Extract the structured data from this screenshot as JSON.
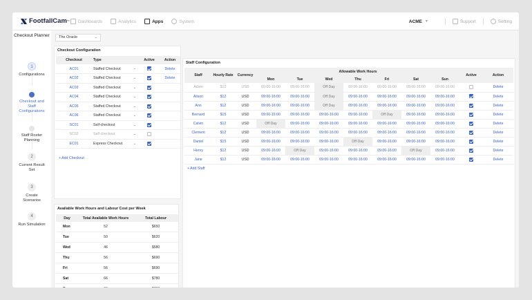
{
  "brand": {
    "name": "FootfallCam",
    "trademark": "™"
  },
  "nav": [
    {
      "label": "Dashboards",
      "icon": "dashboard-icon",
      "active": false
    },
    {
      "label": "Analytics",
      "icon": "analytics-icon",
      "active": false
    },
    {
      "label": "Apps",
      "icon": "apps-grid-icon",
      "active": true
    },
    {
      "label": "System",
      "icon": "system-icon",
      "active": false
    }
  ],
  "account": {
    "name": "ACME",
    "support_label": "Support",
    "setting_label": "Setting"
  },
  "sidebar": {
    "title": "Checkout Planner",
    "steps": [
      {
        "number": "1",
        "label": "Configurations",
        "state": "done"
      },
      {
        "number": "",
        "label": "Checkout and Staff Configurations",
        "state": "current"
      },
      {
        "number": "",
        "label": "Staff Roster Planning",
        "state": "pending"
      },
      {
        "number": "2",
        "label": "Current Result Set",
        "state": "pending"
      },
      {
        "number": "3",
        "label": "Create Scenarios",
        "state": "pending"
      },
      {
        "number": "4",
        "label": "Run Simulation",
        "state": "pending"
      }
    ]
  },
  "store_select": {
    "value": "The Oracle"
  },
  "checkout_config": {
    "title": "Checkout Configuration",
    "headers": [
      "Checkout",
      "Type",
      "Active",
      "Action"
    ],
    "rows": [
      {
        "checkout": "AC01",
        "type": "Staffed Checkout",
        "active": true,
        "action": "Delete",
        "muted": false
      },
      {
        "checkout": "AC02",
        "type": "Staffed Checkout",
        "active": true,
        "action": "Delete",
        "muted": false
      },
      {
        "checkout": "AC03",
        "type": "Staffed Checkout",
        "active": true,
        "action": "",
        "muted": false
      },
      {
        "checkout": "AC04",
        "type": "Staffed Checkout",
        "active": true,
        "action": "",
        "muted": false
      },
      {
        "checkout": "AC05",
        "type": "Staffed Checkout",
        "active": true,
        "action": "",
        "muted": false
      },
      {
        "checkout": "AC06",
        "type": "Staffed Checkout",
        "active": true,
        "action": "",
        "muted": false
      },
      {
        "checkout": "SC01",
        "type": "Self-checkout",
        "active": true,
        "action": "",
        "muted": false
      },
      {
        "checkout": "SC02",
        "type": "Self-checkout",
        "active": false,
        "action": "",
        "muted": true
      },
      {
        "checkout": "EC01",
        "type": "Express Checkout",
        "active": true,
        "action": "",
        "muted": false
      }
    ],
    "add_label": "+ Add Checkout"
  },
  "labour": {
    "title": "Available Work Hours and Labour Cost per Week",
    "headers": [
      "Day",
      "Total Available Work Hours",
      "Total Labour"
    ],
    "rows": [
      {
        "day": "Mon",
        "hours": "52",
        "labour": "$650"
      },
      {
        "day": "Tue",
        "hours": "50",
        "labour": "$620"
      },
      {
        "day": "Wed",
        "hours": "46",
        "labour": "$580"
      },
      {
        "day": "Thu",
        "hours": "56",
        "labour": "$690"
      },
      {
        "day": "Fri",
        "hours": "56",
        "labour": "$690"
      },
      {
        "day": "Sat",
        "hours": "66",
        "labour": "$780"
      },
      {
        "day": "Sun",
        "hours": "66",
        "labour": "$780"
      }
    ],
    "total": {
      "day": "Total",
      "hours": "392",
      "labour": "$4790"
    }
  },
  "staff_config": {
    "title": "Staff Configuration",
    "headers": {
      "staff": "Staff",
      "rate": "Hourly Rate",
      "currency": "Currency",
      "hours_group": "Allowable Work Hours",
      "active": "Active",
      "action": "Action"
    },
    "days": [
      "Mon",
      "Tue",
      "Wed",
      "Thu",
      "Fri",
      "Sat",
      "Sun"
    ],
    "rows": [
      {
        "name": "Adam",
        "rate": "$12",
        "currency": "USD",
        "hours": [
          "09:00-16:00",
          "09:00-16:00",
          "Off Day",
          "09:00-16:00",
          "09:00-16:00",
          "09:00-16:00",
          "09:00-16:00"
        ],
        "active": false,
        "action": "Delete",
        "muted": true
      },
      {
        "name": "Alison",
        "rate": "$12",
        "currency": "USD",
        "hours": [
          "09:00-16:00",
          "09:00-16:00",
          "Off Day",
          "09:00-16:00",
          "09:00-16:00",
          "09:00-16:00",
          "09:00-16:00"
        ],
        "active": true,
        "action": "Delete",
        "muted": false
      },
      {
        "name": "Ann",
        "rate": "$12",
        "currency": "USD",
        "hours": [
          "09:00-16:00",
          "09:00-16:00",
          "Off Day",
          "09:00-16:00",
          "09:00-16:00",
          "09:00-16:00",
          "09:00-16:00"
        ],
        "active": true,
        "action": "Delete",
        "muted": false
      },
      {
        "name": "Bernard",
        "rate": "$15",
        "currency": "USD",
        "hours": [
          "09:00-16:00",
          "09:00-16:00",
          "09:00-16:00",
          "09:00-16:00",
          "Off Day",
          "09:00-16:00",
          "09:00-16:00"
        ],
        "active": true,
        "action": "Delete",
        "muted": false
      },
      {
        "name": "Calvin",
        "rate": "$12",
        "currency": "USD",
        "hours": [
          "Off Day",
          "09:00-16:00",
          "09:00-16:00",
          "09:00-16:00",
          "09:00-16:00",
          "09:00-16:00",
          "09:00-16:00"
        ],
        "active": true,
        "action": "Delete",
        "muted": false
      },
      {
        "name": "Clement",
        "rate": "$12",
        "currency": "USD",
        "hours": [
          "09:00-16:00",
          "09:00-16:00",
          "09:00-16:00",
          "09:00-16:00",
          "09:00-16:00",
          "09:00-16:00",
          "09:00-16:00"
        ],
        "active": true,
        "action": "Delete",
        "muted": false
      },
      {
        "name": "Daniel",
        "rate": "$15",
        "currency": "USD",
        "hours": [
          "09:00-16:00",
          "09:00-16:00",
          "09:00-16:00",
          "Off Day",
          "09:00-16:00",
          "09:00-16:00",
          "09:00-16:00"
        ],
        "active": true,
        "action": "Delete",
        "muted": false
      },
      {
        "name": "Henry",
        "rate": "$12",
        "currency": "USD",
        "hours": [
          "09:00-16:00",
          "Off Day",
          "09:00-16:00",
          "09:00-16:00",
          "09:00-16:00",
          "Off Day",
          "09:00-16:00"
        ],
        "active": true,
        "action": "Delete",
        "muted": false
      },
      {
        "name": "Jane",
        "rate": "$12",
        "currency": "USD",
        "hours": [
          "09:00-16:00",
          "09:00-16:00",
          "09:00-16:00",
          "09:00-16:00",
          "09:00-16:00",
          "09:00-16:00",
          "09:00-16:00"
        ],
        "active": true,
        "action": "Delete",
        "muted": false
      }
    ],
    "add_label": "+ Add Staff"
  },
  "colors": {
    "accent": "#3a62c2",
    "offday_bg": "#eeeeee",
    "header_bg": "#f0f0f0"
  }
}
